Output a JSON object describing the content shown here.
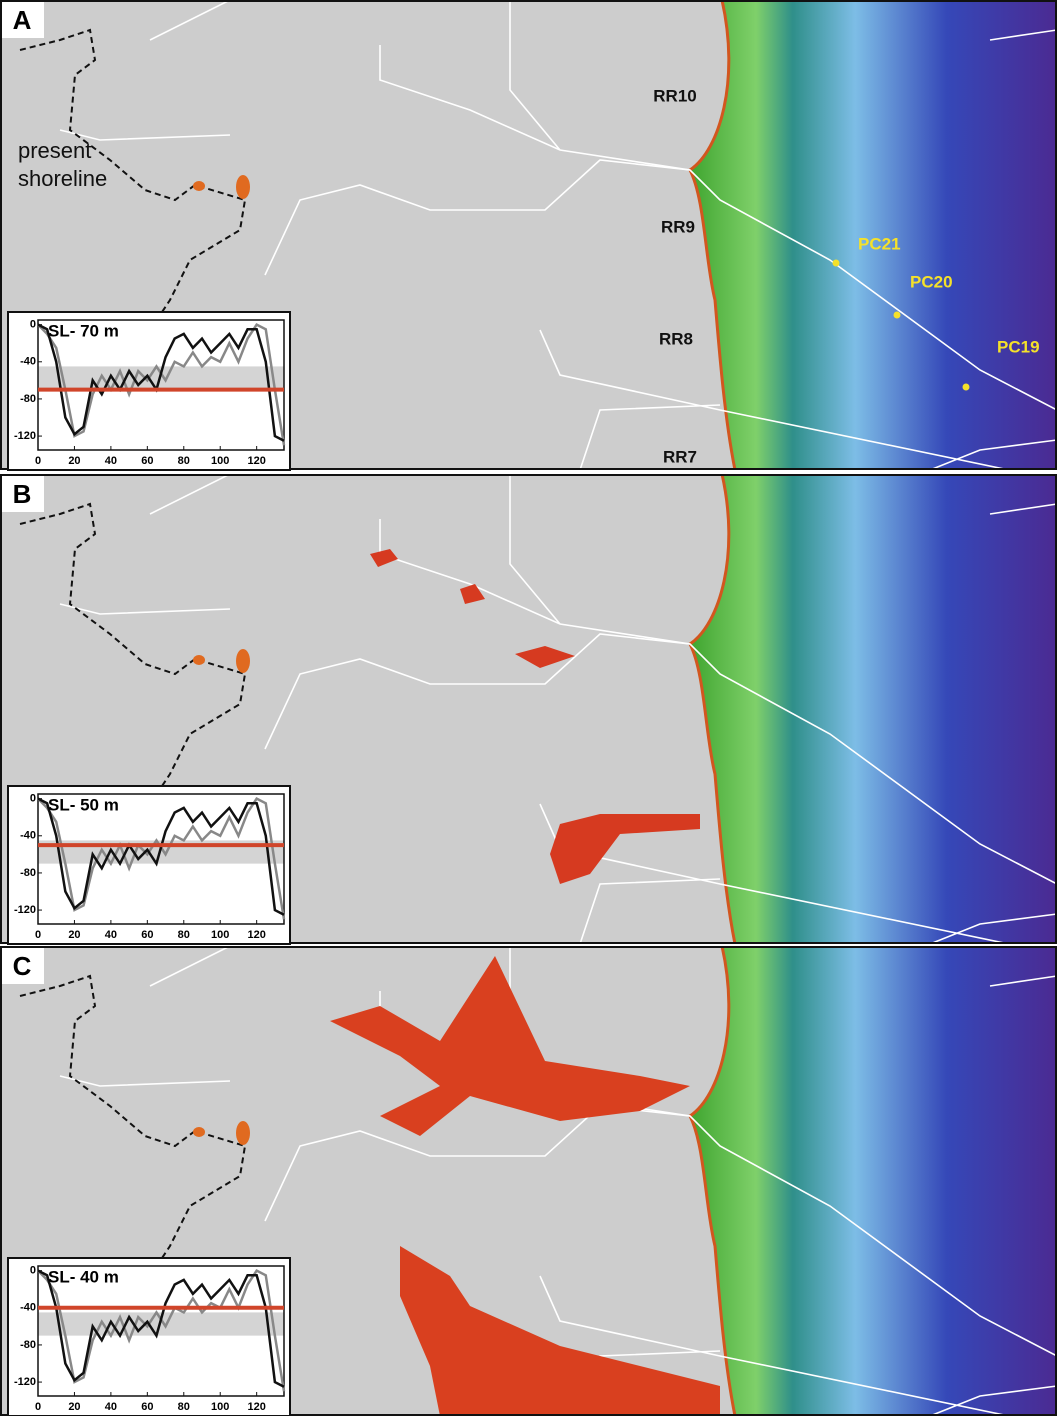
{
  "panels": [
    {
      "label": "A",
      "shoreline_label": [
        "present",
        "shoreline"
      ],
      "ridge_labels": [
        "RR10",
        "RR9",
        "RR8",
        "RR7"
      ],
      "core_labels": [
        "PC21",
        "PC20",
        "PC19"
      ],
      "inset_title": "SL- 70 m",
      "sea_level": -70
    },
    {
      "label": "B",
      "inset_title": "SL- 50 m",
      "sea_level": -50
    },
    {
      "label": "C",
      "inset_title": "SL- 40 m",
      "sea_level": -40
    }
  ],
  "profile": {
    "type": "line",
    "xlim": [
      0,
      135
    ],
    "ylim": [
      -135,
      5
    ],
    "xticks": [
      0,
      20,
      40,
      60,
      80,
      100,
      120
    ],
    "yticks": [
      0,
      -40,
      -80,
      -120
    ],
    "shaded_range": [
      -45,
      -70
    ],
    "sea_level_color": "#d0452a",
    "x": [
      0,
      5,
      10,
      15,
      20,
      25,
      30,
      35,
      40,
      45,
      50,
      55,
      60,
      65,
      70,
      75,
      80,
      85,
      90,
      95,
      100,
      105,
      110,
      115,
      120,
      125,
      130,
      135
    ],
    "series": [
      {
        "color": "#111111",
        "values": [
          0,
          -5,
          -40,
          -100,
          -118,
          -110,
          -60,
          -75,
          -55,
          -70,
          -50,
          -65,
          -55,
          -70,
          -35,
          -15,
          -10,
          -25,
          -15,
          -30,
          -20,
          -10,
          -25,
          -5,
          -5,
          -40,
          -120,
          -125
        ]
      },
      {
        "color": "#888888",
        "values": [
          0,
          -10,
          -25,
          -70,
          -120,
          -115,
          -75,
          -55,
          -70,
          -50,
          -75,
          -50,
          -60,
          -45,
          -60,
          -40,
          -45,
          -30,
          -45,
          -35,
          -40,
          -20,
          -40,
          -15,
          0,
          -5,
          -70,
          -130
        ]
      }
    ]
  }
}
